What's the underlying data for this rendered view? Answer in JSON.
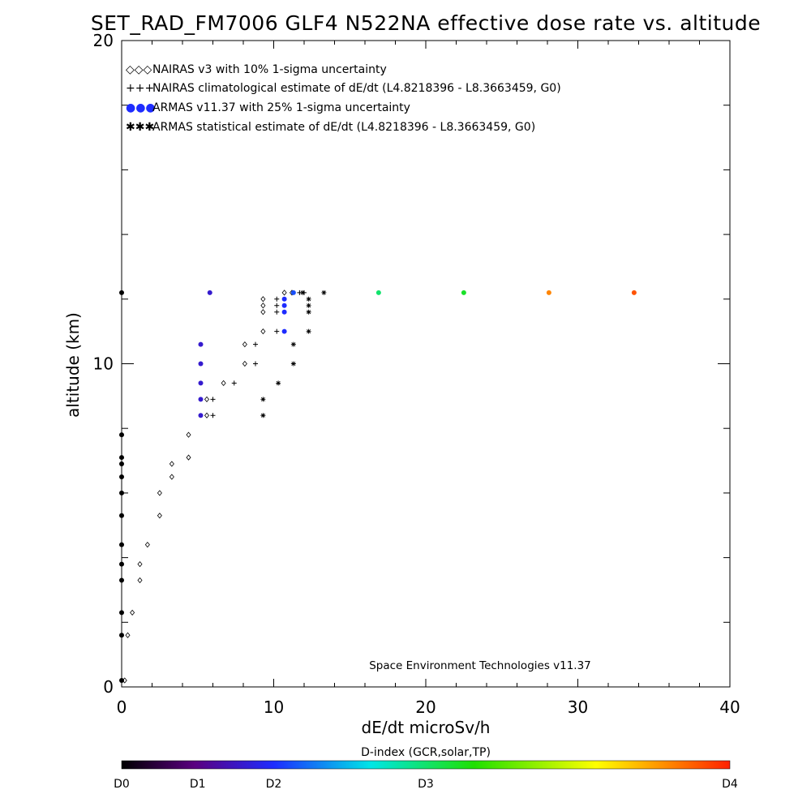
{
  "chart_data": {
    "type": "scatter",
    "title": "SET_RAD_FM7006  GLF4 N522NA effective dose rate vs. altitude",
    "xlabel": "dE/dt microSv/h",
    "ylabel": "altitude (km)",
    "xlim": [
      0,
      40
    ],
    "ylim": [
      0,
      20
    ],
    "xticks": [
      "0",
      "10",
      "20",
      "30",
      "40"
    ],
    "yticks": [
      "0",
      "10",
      "20"
    ],
    "legend": {
      "placement": "top-left",
      "entries": [
        {
          "symbol": "◇◇◇",
          "label": "NAIRAS v3 with 10% 1-sigma uncertainty"
        },
        {
          "symbol": "+++",
          "label": "NAIRAS climatological estimate of dE/dt (L4.8218396 - L8.3663459, G0)"
        },
        {
          "symbol": "●●●",
          "label": "ARMAS v11.37 with 25% 1-sigma uncertainty"
        },
        {
          "symbol": "✱✱✱",
          "label": "ARMAS statistical estimate of dE/dt (L4.8218396 - L8.3663459, G0)"
        }
      ]
    },
    "annotation": "Space Environment Technologies v11.37",
    "colorbar": {
      "title": "D-index (GCR,solar,TP)",
      "labels": [
        "D0",
        "D1",
        "D2",
        "D3",
        "D4"
      ],
      "label_positions": [
        0,
        0.25,
        0.5,
        1,
        2
      ]
    },
    "series": [
      {
        "name": "NAIRAS v3 with 10% 1-sigma uncertainty",
        "marker": "diamond",
        "points": [
          [
            0.2,
            0.2
          ],
          [
            0.4,
            1.6
          ],
          [
            0.7,
            2.3
          ],
          [
            1.2,
            3.3
          ],
          [
            1.2,
            3.8
          ],
          [
            1.7,
            4.4
          ],
          [
            2.5,
            5.3
          ],
          [
            2.5,
            6.0
          ],
          [
            3.3,
            6.5
          ],
          [
            3.3,
            6.9
          ],
          [
            4.4,
            7.1
          ],
          [
            4.4,
            7.8
          ],
          [
            5.6,
            8.4
          ],
          [
            5.6,
            8.9
          ],
          [
            6.7,
            9.4
          ],
          [
            8.1,
            10.0
          ],
          [
            8.1,
            10.6
          ],
          [
            9.3,
            11.0
          ],
          [
            9.3,
            11.6
          ],
          [
            9.3,
            11.8
          ],
          [
            9.3,
            12.0
          ],
          [
            10.7,
            12.2
          ],
          [
            11.2,
            12.2
          ]
        ]
      },
      {
        "name": "NAIRAS climatological estimate of dE/dt (L4.8218396 - L8.3663459, G0)",
        "marker": "plus",
        "points": [
          [
            6.0,
            8.4
          ],
          [
            6.0,
            8.9
          ],
          [
            7.4,
            9.4
          ],
          [
            8.8,
            10.0
          ],
          [
            8.8,
            10.6
          ],
          [
            10.2,
            11.0
          ],
          [
            10.2,
            11.6
          ],
          [
            10.2,
            11.8
          ],
          [
            10.2,
            12.0
          ],
          [
            11.7,
            12.2
          ],
          [
            12.0,
            12.2
          ]
        ]
      },
      {
        "name": "ARMAS v11.37 with 25% 1-sigma uncertainty",
        "marker": "dot",
        "points": [
          {
            "x": 0,
            "y": 0.2,
            "d": 0
          },
          {
            "x": 0,
            "y": 1.6,
            "d": 0
          },
          {
            "x": 0,
            "y": 2.3,
            "d": 0
          },
          {
            "x": 0,
            "y": 3.3,
            "d": 0
          },
          {
            "x": 0,
            "y": 3.8,
            "d": 0
          },
          {
            "x": 0,
            "y": 4.4,
            "d": 0
          },
          {
            "x": 0,
            "y": 5.3,
            "d": 0
          },
          {
            "x": 0,
            "y": 6.0,
            "d": 0
          },
          {
            "x": 0,
            "y": 6.5,
            "d": 0
          },
          {
            "x": 0,
            "y": 6.9,
            "d": 0
          },
          {
            "x": 0,
            "y": 7.1,
            "d": 0
          },
          {
            "x": 0,
            "y": 7.8,
            "d": 0
          },
          {
            "x": 0,
            "y": 12.2,
            "d": 0
          },
          {
            "x": 5.2,
            "y": 8.4,
            "d": 0.2
          },
          {
            "x": 5.2,
            "y": 8.9,
            "d": 0.2
          },
          {
            "x": 5.2,
            "y": 9.4,
            "d": 0.2
          },
          {
            "x": 5.2,
            "y": 10.0,
            "d": 0.2
          },
          {
            "x": 5.2,
            "y": 10.6,
            "d": 0.2
          },
          {
            "x": 5.8,
            "y": 12.2,
            "d": 0.2
          },
          {
            "x": 10.7,
            "y": 11.0,
            "d": 0.25
          },
          {
            "x": 10.7,
            "y": 11.6,
            "d": 0.25
          },
          {
            "x": 10.7,
            "y": 11.8,
            "d": 0.25
          },
          {
            "x": 10.7,
            "y": 12.0,
            "d": 0.25
          },
          {
            "x": 11.3,
            "y": 12.2,
            "d": 0.28
          },
          {
            "x": 16.9,
            "y": 12.2,
            "d": 0.5
          },
          {
            "x": 22.5,
            "y": 12.2,
            "d": 0.55
          },
          {
            "x": 28.1,
            "y": 12.2,
            "d": 0.9
          },
          {
            "x": 33.7,
            "y": 12.2,
            "d": 0.95
          }
        ]
      },
      {
        "name": "ARMAS statistical estimate of dE/dt (L4.8218396 - L8.3663459, G0)",
        "marker": "asterisk",
        "points": [
          [
            9.3,
            8.4
          ],
          [
            9.3,
            8.9
          ],
          [
            10.3,
            9.4
          ],
          [
            11.3,
            10.0
          ],
          [
            11.3,
            10.6
          ],
          [
            12.3,
            11.0
          ],
          [
            12.3,
            11.6
          ],
          [
            12.3,
            11.8
          ],
          [
            12.3,
            12.0
          ],
          [
            11.9,
            12.2
          ],
          [
            13.3,
            12.2
          ]
        ]
      }
    ],
    "colors": {
      "axes": "#000000",
      "colorbar": [
        "#000000",
        "#5a0080",
        "#1e2cff",
        "#00e6e6",
        "#20e000",
        "#ffff00",
        "#ff2000"
      ]
    }
  }
}
